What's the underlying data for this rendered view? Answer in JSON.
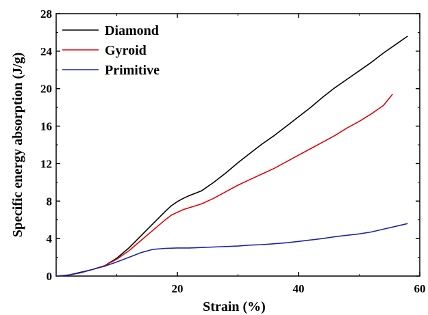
{
  "chart_data": {
    "type": "line",
    "title": "",
    "xlabel": "Strain (%)",
    "ylabel": "Specific energy absorption (J/g)",
    "xlim": [
      0,
      60
    ],
    "ylim": [
      0,
      28
    ],
    "xticks": [
      20,
      40,
      60
    ],
    "yticks": [
      0,
      4,
      8,
      12,
      16,
      20,
      24,
      28
    ],
    "grid": false,
    "legend_position": "top-left",
    "series": [
      {
        "name": "Diamond",
        "color": "#000000",
        "x": [
          0,
          2,
          4,
          6,
          8,
          10,
          12,
          14,
          16,
          18,
          19,
          20,
          21,
          22,
          24,
          26,
          28,
          30,
          32,
          34,
          36,
          38,
          40,
          42,
          44,
          46,
          48,
          50,
          52,
          54,
          56,
          58
        ],
        "y": [
          0,
          0.1,
          0.4,
          0.7,
          1.1,
          1.9,
          3.0,
          4.3,
          5.6,
          6.9,
          7.5,
          7.95,
          8.3,
          8.6,
          9.1,
          10.0,
          11.0,
          12.1,
          13.1,
          14.1,
          15.0,
          16.0,
          17.0,
          18.0,
          19.1,
          20.1,
          21.0,
          21.9,
          22.8,
          23.8,
          24.7,
          25.6
        ]
      },
      {
        "name": "Gyroid",
        "color": "#e00000",
        "x": [
          0,
          2,
          4,
          6,
          8,
          10,
          12,
          14,
          16,
          18,
          19,
          20,
          21,
          22,
          24,
          26,
          28,
          30,
          32,
          34,
          36,
          38,
          40,
          42,
          44,
          46,
          48,
          50,
          52,
          54,
          55.5
        ],
        "y": [
          0,
          0.1,
          0.35,
          0.7,
          1.1,
          1.8,
          2.7,
          3.8,
          4.9,
          6.0,
          6.5,
          6.8,
          7.1,
          7.3,
          7.7,
          8.3,
          9.0,
          9.7,
          10.3,
          10.9,
          11.5,
          12.2,
          12.9,
          13.6,
          14.3,
          15.0,
          15.8,
          16.5,
          17.3,
          18.2,
          19.4
        ]
      },
      {
        "name": "Primitive",
        "color": "#1a24a8",
        "x": [
          0,
          2,
          4,
          6,
          8,
          10,
          12,
          14,
          16,
          18,
          20,
          22,
          24,
          26,
          28,
          30,
          32,
          34,
          36,
          38,
          40,
          42,
          44,
          46,
          48,
          50,
          52,
          54,
          56,
          58
        ],
        "y": [
          0,
          0.1,
          0.35,
          0.7,
          1.05,
          1.5,
          2.0,
          2.5,
          2.85,
          2.95,
          3.0,
          3.0,
          3.05,
          3.1,
          3.15,
          3.2,
          3.3,
          3.35,
          3.45,
          3.55,
          3.7,
          3.85,
          4.0,
          4.2,
          4.35,
          4.5,
          4.7,
          5.0,
          5.3,
          5.6
        ]
      }
    ]
  }
}
